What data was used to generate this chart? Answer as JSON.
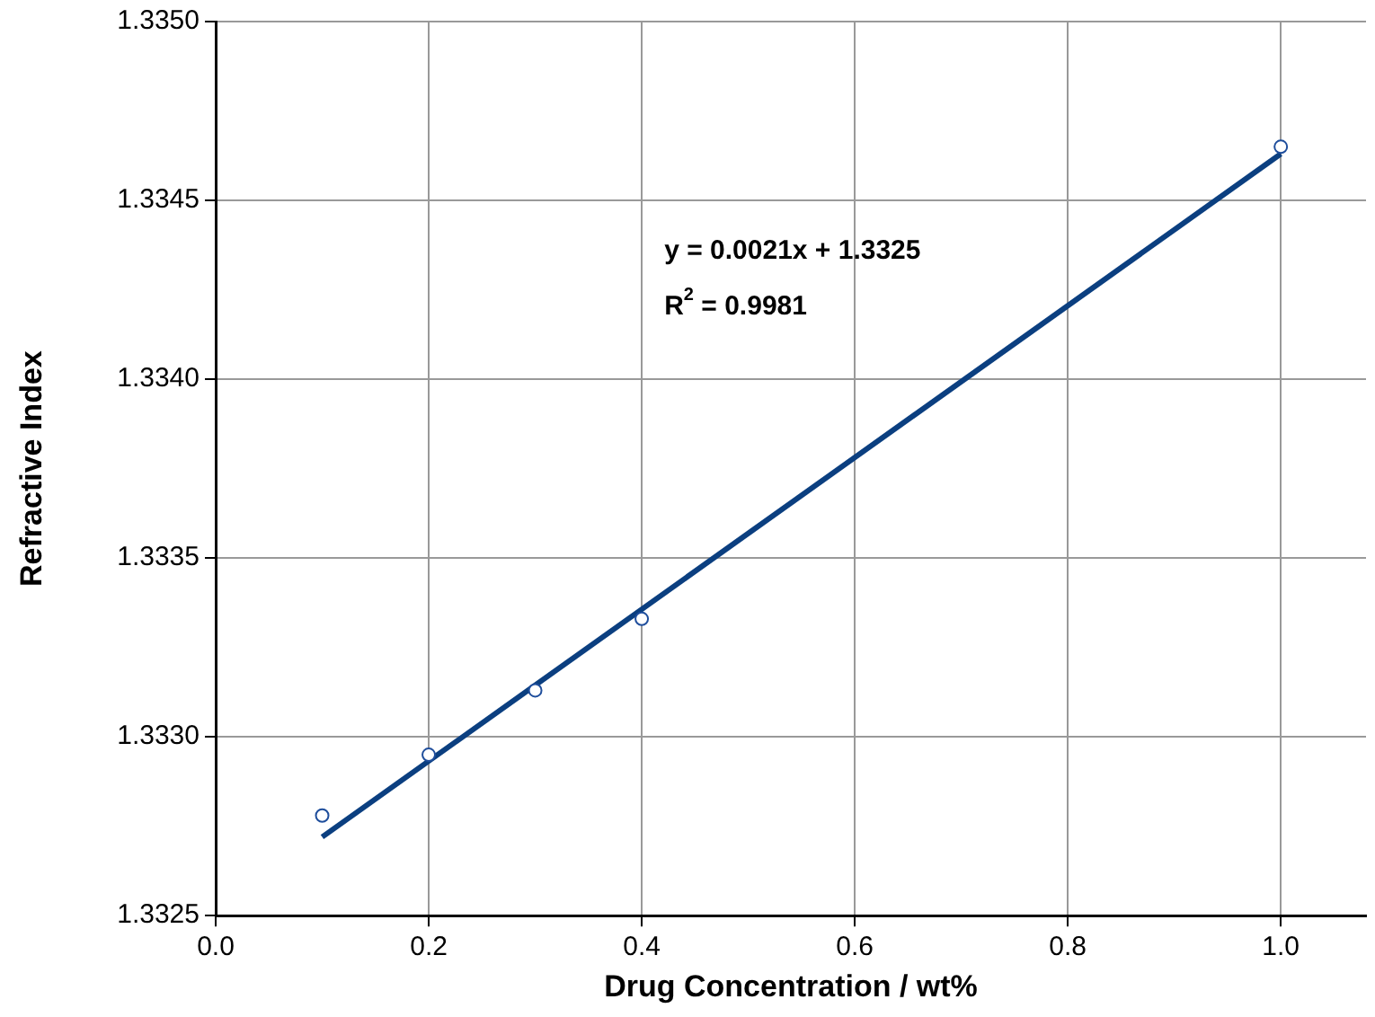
{
  "chart_data": {
    "type": "scatter",
    "xlabel": "Drug Concentration / wt%",
    "ylabel": "Refractive Index",
    "x": [
      0.1,
      0.2,
      0.3,
      0.4,
      1.0
    ],
    "series": [
      {
        "color": "#1f4e9c",
        "marker": "circle",
        "values": [
          1.33278,
          1.33295,
          1.33313,
          1.33333,
          1.33465
        ]
      },
      {
        "type": "line",
        "color": "#0b3f80",
        "marker": "none",
        "x": [
          0.1,
          1.0
        ],
        "values": [
          1.33272,
          1.33463
        ]
      }
    ],
    "annotations": [
      "y = 0.0021x + 1.3325",
      "R$^{2}$ = 0.9981"
    ],
    "xlim": [
      0,
      1.08
    ],
    "xticks": [
      {
        "value": 0,
        "label": "0.0"
      },
      {
        "value": 0.2,
        "label": "0.2"
      },
      {
        "value": 0.4,
        "label": "0.4"
      },
      {
        "value": 0.6,
        "label": "0.6"
      },
      {
        "value": 0.8,
        "label": "0.8"
      },
      {
        "value": 1,
        "label": "1.0"
      }
    ],
    "ylim": [
      1.3325,
      1.335
    ],
    "yticks": [
      {
        "value": 1.3325,
        "label": "1.3325"
      },
      {
        "value": 1.333,
        "label": "1.3330"
      },
      {
        "value": 1.3335,
        "label": "1.3335"
      },
      {
        "value": 1.334,
        "label": "1.3340"
      },
      {
        "value": 1.3345,
        "label": "1.3345"
      },
      {
        "value": 1.335,
        "label": "1.3350"
      }
    ],
    "grid": true,
    "legend": false
  }
}
